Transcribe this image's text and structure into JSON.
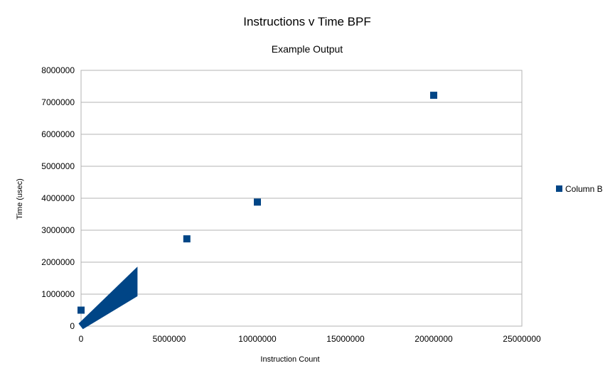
{
  "chart_data": {
    "type": "scatter",
    "title": "Instructions v Time BPF",
    "subtitle": "Example Output",
    "xlabel": "Instruction Count",
    "ylabel": "Time (usec)",
    "xlim": [
      0,
      25000000
    ],
    "ylim": [
      0,
      8000000
    ],
    "xticks": [
      0,
      5000000,
      10000000,
      15000000,
      20000000,
      25000000
    ],
    "xtick_labels": [
      "0",
      "5000000",
      "10000000",
      "15000000",
      "20000000",
      "25000000"
    ],
    "yticks": [
      0,
      1000000,
      2000000,
      3000000,
      4000000,
      5000000,
      6000000,
      7000000,
      8000000
    ],
    "ytick_labels": [
      "0",
      "1000000",
      "2000000",
      "3000000",
      "4000000",
      "5000000",
      "6000000",
      "7000000",
      "8000000"
    ],
    "grid": "horizontal",
    "legend": "right",
    "series": [
      {
        "name": "Column B",
        "color": "#004586",
        "marker": "square",
        "points": [
          [
            0,
            500000
          ],
          [
            6000000,
            2730000
          ],
          [
            10000000,
            3880000
          ],
          [
            20000000,
            7220000
          ]
        ],
        "dense_band": {
          "x_range": [
            0,
            3000000
          ],
          "y_low_slope": 0.3333,
          "y_high_slope": 0.5333
        }
      }
    ]
  }
}
